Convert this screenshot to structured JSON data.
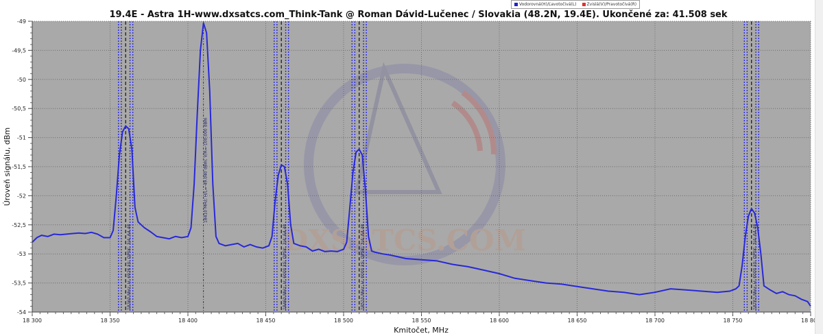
{
  "chart_data": {
    "type": "line",
    "title": "19.4E - Astra 1H-www.dxsatcs.com_Think-Tank @ Roman Dávid-Lučenec / Slovakia (48.2N, 19.4E). Ukončené za: 41.508 sek",
    "xlabel": "Kmitočet, MHz",
    "ylabel": "Úroveň signálu, dBm",
    "xlim": [
      18300,
      18800
    ],
    "ylim": [
      -54,
      -49
    ],
    "x_ticks": [
      "18 300",
      "18 350",
      "18 400",
      "18 450",
      "18 500",
      "18 550",
      "18 600",
      "18 650",
      "18 700",
      "18 750",
      "18 800"
    ],
    "y_ticks": [
      "-49",
      "-49,5",
      "-50",
      "-50,5",
      "-51",
      "-51,5",
      "-52",
      "-52,5",
      "-53",
      "-53,5",
      "-54"
    ],
    "grid": true,
    "legend_position": "top-right",
    "legend": [
      {
        "name": "Vodorovná(H)/Ľavotočivá(L)",
        "color": "#2020d0"
      },
      {
        "name": "Zvislá(V)/Pravotočivá(R)",
        "color": "#e03030"
      }
    ],
    "series": [
      {
        "name": "Vodorovná(H)/Ľavotočivá(L)",
        "color": "#2828d8",
        "x": [
          18300,
          18303,
          18306,
          18310,
          18314,
          18318,
          18322,
          18326,
          18330,
          18334,
          18338,
          18342,
          18346,
          18350,
          18352,
          18354,
          18356,
          18358,
          18360,
          18362,
          18364,
          18366,
          18368,
          18372,
          18376,
          18380,
          18384,
          18388,
          18392,
          18396,
          18400,
          18402,
          18404,
          18406,
          18408,
          18410,
          18412,
          18414,
          18416,
          18418,
          18420,
          18424,
          18428,
          18432,
          18436,
          18440,
          18444,
          18448,
          18452,
          18454,
          18456,
          18458,
          18460,
          18462,
          18464,
          18466,
          18468,
          18472,
          18476,
          18480,
          18484,
          18488,
          18492,
          18496,
          18500,
          18502,
          18504,
          18506,
          18508,
          18510,
          18512,
          18514,
          18516,
          18518,
          18520,
          18525,
          18530,
          18540,
          18550,
          18560,
          18570,
          18580,
          18590,
          18600,
          18610,
          18620,
          18630,
          18640,
          18650,
          18660,
          18670,
          18680,
          18690,
          18700,
          18710,
          18720,
          18730,
          18740,
          18748,
          18752,
          18754,
          18756,
          18758,
          18760,
          18762,
          18764,
          18766,
          18768,
          18770,
          18774,
          18778,
          18782,
          18786,
          18790,
          18794,
          18798,
          18800
        ],
        "y": [
          -52.8,
          -52.72,
          -52.68,
          -52.7,
          -52.66,
          -52.67,
          -52.66,
          -52.65,
          -52.64,
          -52.65,
          -52.63,
          -52.66,
          -52.72,
          -52.72,
          -52.6,
          -52.0,
          -51.3,
          -50.9,
          -50.8,
          -50.85,
          -51.2,
          -52.2,
          -52.45,
          -52.55,
          -52.62,
          -52.7,
          -52.72,
          -52.74,
          -52.7,
          -52.72,
          -52.7,
          -52.55,
          -51.8,
          -50.6,
          -49.5,
          -49.03,
          -49.2,
          -50.2,
          -51.8,
          -52.7,
          -52.82,
          -52.86,
          -52.84,
          -52.82,
          -52.88,
          -52.84,
          -52.88,
          -52.9,
          -52.86,
          -52.7,
          -52.1,
          -51.65,
          -51.47,
          -51.5,
          -51.8,
          -52.5,
          -52.82,
          -52.86,
          -52.88,
          -52.95,
          -52.92,
          -52.96,
          -52.95,
          -52.96,
          -52.92,
          -52.8,
          -52.2,
          -51.6,
          -51.25,
          -51.2,
          -51.3,
          -51.9,
          -52.7,
          -52.95,
          -52.97,
          -53.0,
          -53.02,
          -53.08,
          -53.1,
          -53.12,
          -53.18,
          -53.22,
          -53.28,
          -53.34,
          -53.42,
          -53.46,
          -53.5,
          -53.52,
          -53.56,
          -53.6,
          -53.64,
          -53.66,
          -53.7,
          -53.66,
          -53.6,
          -53.62,
          -53.64,
          -53.66,
          -53.64,
          -53.6,
          -53.55,
          -53.2,
          -52.7,
          -52.35,
          -52.22,
          -52.3,
          -52.55,
          -53.0,
          -53.55,
          -53.62,
          -53.68,
          -53.65,
          -53.7,
          -53.72,
          -53.78,
          -53.82,
          -53.9
        ]
      }
    ],
    "markers": [
      {
        "freq": 18360,
        "label": "18360 MHz; H; 6926 kS; QPSK; 3/4; 64.48"
      },
      {
        "freq": 18410,
        "label": "18410 MHz; H/L=-49.040 dBm; V/R=-100.000 dBm"
      },
      {
        "freq": 18460,
        "label": "18460 MHz; H; 6000 kS; QPSK; 3/4; 64.48"
      },
      {
        "freq": 18510,
        "label": "18510 MHz; H; 6000 kS; QPSK; 3/4; 64.48"
      },
      {
        "freq": 18762,
        "label": "18762 MHz; H; 6000 kS; QPSK; 3/4; 64.48"
      }
    ],
    "watermark": "DXSATCS.COM"
  }
}
